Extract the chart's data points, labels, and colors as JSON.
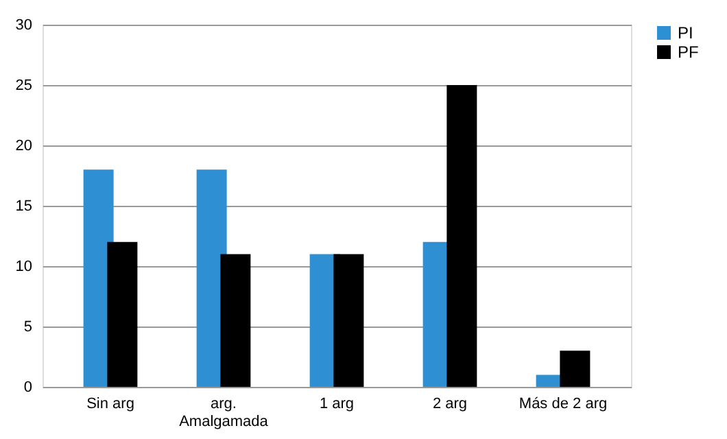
{
  "chart_data": {
    "type": "bar",
    "categories": [
      "Sin arg",
      "arg.\nAmalgamada",
      "1 arg",
      "2 arg",
      "Más de 2 arg"
    ],
    "series": [
      {
        "name": "PI",
        "color": "#2f8fd3",
        "values": [
          18,
          18,
          11,
          12,
          1
        ]
      },
      {
        "name": "PF",
        "color": "#000000",
        "values": [
          12,
          11,
          11,
          25,
          3
        ]
      }
    ],
    "ylim": [
      0,
      30
    ],
    "yticks": [
      0,
      5,
      10,
      15,
      20,
      25,
      30
    ],
    "grid": "y",
    "legend": "right"
  }
}
